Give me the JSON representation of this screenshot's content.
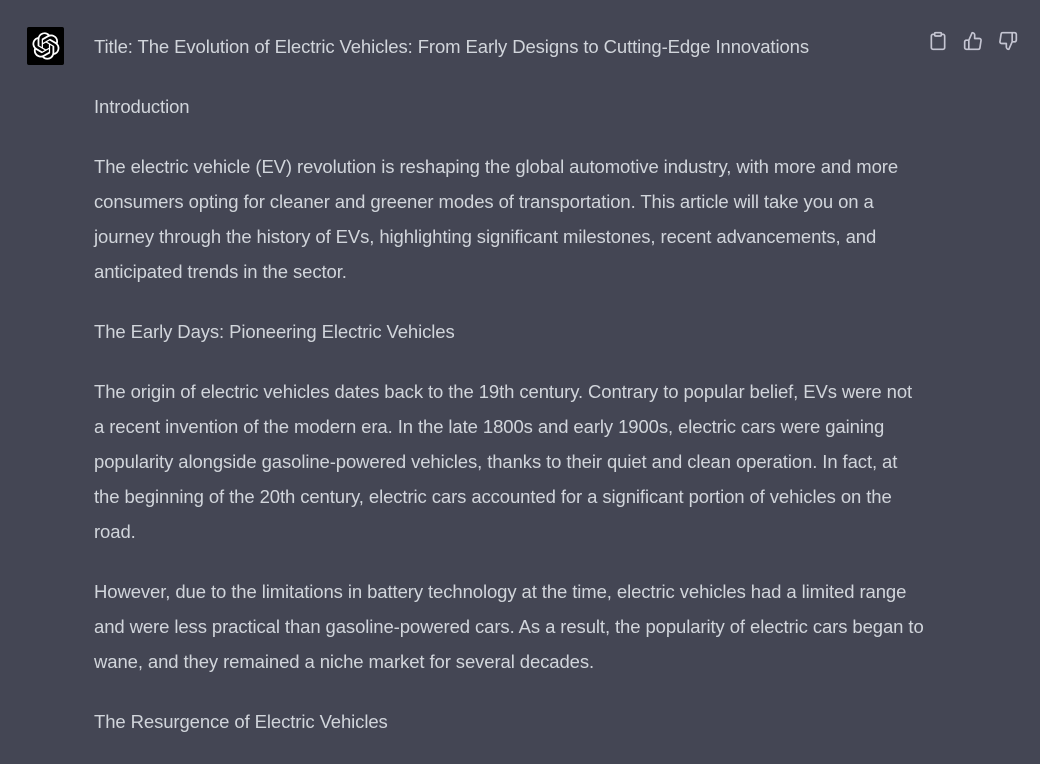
{
  "message": {
    "avatar_icon": "openai-logo-icon",
    "actions": [
      {
        "icon": "clipboard-icon"
      },
      {
        "icon": "thumbs-up-icon"
      },
      {
        "icon": "thumbs-down-icon"
      }
    ],
    "paragraphs": [
      "Title: The Evolution of Electric Vehicles: From Early Designs to Cutting-Edge Innovations",
      "Introduction",
      "The electric vehicle (EV) revolution is reshaping the global automotive industry, with more and more consumers opting for cleaner and greener modes of transportation. This article will take you on a journey through the history of EVs, highlighting significant milestones, recent advancements, and anticipated trends in the sector.",
      "The Early Days: Pioneering Electric Vehicles",
      "The origin of electric vehicles dates back to the 19th century. Contrary to popular belief, EVs were not a recent invention of the modern era. In the late 1800s and early 1900s, electric cars were gaining popularity alongside gasoline-powered vehicles, thanks to their quiet and clean operation. In fact, at the beginning of the 20th century, electric cars accounted for a significant portion of vehicles on the road.",
      "However, due to the limitations in battery technology at the time, electric vehicles had a limited range and were less practical than gasoline-powered cars. As a result, the popularity of electric cars began to wane, and they remained a niche market for several decades.",
      "The Resurgence of Electric Vehicles"
    ]
  },
  "colors": {
    "background": "#444654",
    "text": "#d1d5db",
    "icon": "#c5c5d2",
    "avatar_bg": "#000000"
  }
}
